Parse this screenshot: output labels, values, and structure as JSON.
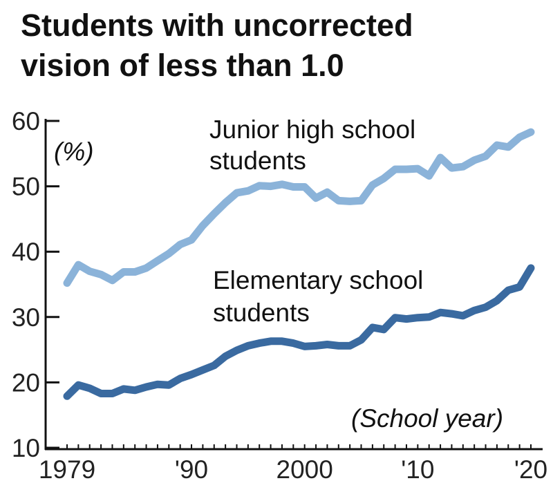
{
  "chart_data": {
    "type": "line",
    "title": [
      "Students with uncorrected",
      "vision of less than 1.0"
    ],
    "ylabel": "(%)",
    "xlabel": "(School year)",
    "ylim": [
      10,
      60
    ],
    "xlim": [
      1979,
      2020
    ],
    "yticks": [
      10,
      20,
      30,
      40,
      50,
      60
    ],
    "xticks": [
      {
        "value": 1979,
        "label": "1979"
      },
      {
        "value": 1990,
        "label": "'90"
      },
      {
        "value": 2000,
        "label": "2000"
      },
      {
        "value": 2010,
        "label": "'10"
      },
      {
        "value": 2020,
        "label": "'20"
      }
    ],
    "grid": false,
    "x_start": 1979,
    "series": [
      {
        "name": "Junior high school students",
        "label_lines": [
          "Junior high school",
          "students"
        ],
        "color": "#8bb3d9",
        "values": [
          35.2,
          38.0,
          37.0,
          36.5,
          35.6,
          36.9,
          36.9,
          37.5,
          38.6,
          39.7,
          41.1,
          41.8,
          44.0,
          45.8,
          47.5,
          49.0,
          49.3,
          50.1,
          50.0,
          50.3,
          49.9,
          49.9,
          48.2,
          49.1,
          47.8,
          47.7,
          47.8,
          50.2,
          51.2,
          52.6,
          52.6,
          52.7,
          51.6,
          54.4,
          52.8,
          53.0,
          54.0,
          54.6,
          56.3,
          56.0,
          57.5,
          58.3
        ]
      },
      {
        "name": "Elementary school students",
        "label_lines": [
          "Elementary school",
          "students"
        ],
        "color": "#3a6aa0",
        "values": [
          17.9,
          19.6,
          19.1,
          18.3,
          18.3,
          19.0,
          18.8,
          19.3,
          19.7,
          19.6,
          20.6,
          21.2,
          21.9,
          22.6,
          24.0,
          24.9,
          25.6,
          26.0,
          26.3,
          26.3,
          26.0,
          25.5,
          25.6,
          25.8,
          25.6,
          25.6,
          26.5,
          28.4,
          28.1,
          29.9,
          29.7,
          29.9,
          30.0,
          30.7,
          30.5,
          30.2,
          31.0,
          31.5,
          32.5,
          34.1,
          34.6,
          37.5
        ]
      }
    ]
  }
}
